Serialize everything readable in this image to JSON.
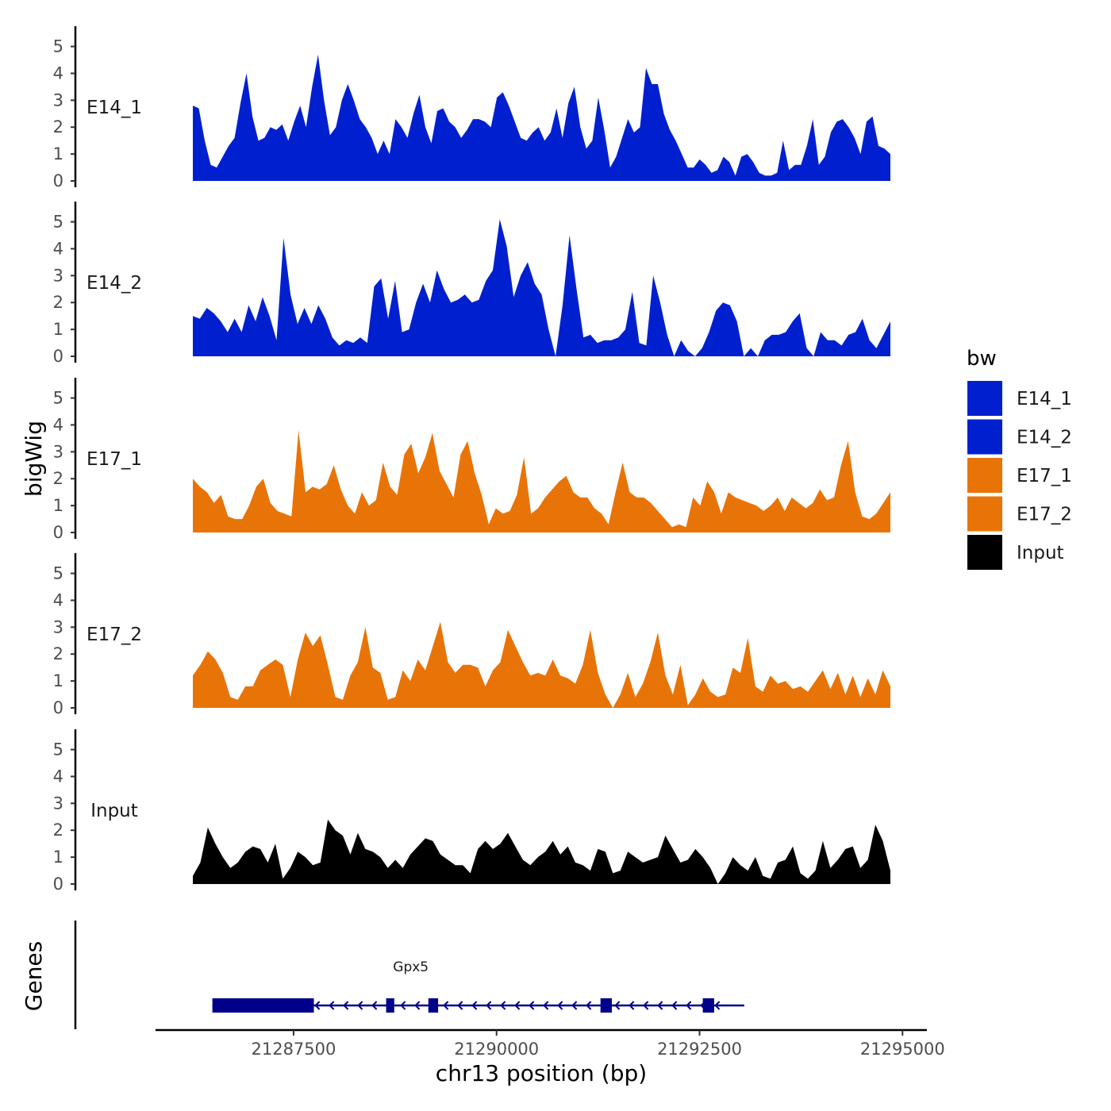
{
  "chart_data": {
    "type": "area",
    "ylabel": "bigWig",
    "xlabel": "chr13 position (bp)",
    "xlim": [
      21285800,
      21295300
    ],
    "ylim": [
      0,
      5.4
    ],
    "y_ticks": [
      0,
      1,
      2,
      3,
      4,
      5
    ],
    "x_ticks": [
      21287500,
      21290000,
      21292500,
      21295000
    ],
    "x_range_data": [
      21286500,
      21294700
    ],
    "legend": {
      "title": "bw",
      "entries": [
        {
          "label": "E14_1",
          "color": "#0020d0"
        },
        {
          "label": "E14_2",
          "color": "#0020d0"
        },
        {
          "label": "E17_1",
          "color": "#e87408"
        },
        {
          "label": "E17_2",
          "color": "#e87408"
        },
        {
          "label": "Input",
          "color": "#000000"
        }
      ]
    },
    "tracks": [
      {
        "name": "E14_1",
        "color": "#0020d0",
        "values": [
          2.8,
          2.7,
          1.5,
          0.6,
          0.5,
          0.9,
          1.3,
          1.6,
          2.9,
          4.0,
          2.4,
          1.5,
          1.6,
          2.0,
          1.9,
          2.1,
          1.5,
          2.2,
          2.8,
          2.0,
          3.5,
          4.7,
          3.0,
          1.7,
          2.0,
          3.0,
          3.6,
          3.0,
          2.3,
          2.0,
          1.6,
          1.0,
          1.5,
          1.0,
          2.3,
          2.0,
          1.6,
          2.5,
          3.2,
          2.0,
          1.4,
          2.6,
          2.7,
          2.2,
          2.0,
          1.6,
          1.9,
          2.3,
          2.3,
          2.2,
          2.0,
          3.1,
          3.3,
          2.8,
          2.2,
          1.6,
          1.5,
          1.8,
          2.0,
          1.5,
          1.8,
          2.7,
          1.6,
          2.9,
          3.5,
          2.0,
          1.2,
          1.5,
          3.1,
          1.9,
          0.5,
          0.9,
          1.6,
          2.3,
          1.8,
          2.0,
          4.2,
          3.6,
          3.6,
          2.5,
          1.9,
          1.5,
          1.0,
          0.5,
          0.5,
          0.8,
          0.6,
          0.3,
          0.4,
          0.9,
          0.7,
          0.2,
          0.9,
          1.0,
          0.7,
          0.3,
          0.2,
          0.2,
          0.3,
          1.5,
          0.4,
          0.6,
          0.6,
          1.3,
          2.3,
          0.6,
          0.9,
          1.8,
          2.2,
          2.3,
          2.0,
          1.6,
          1.0,
          2.2,
          2.4,
          1.3,
          1.2,
          1.0
        ],
        "tick_label": "E14_1"
      },
      {
        "name": "E14_2",
        "color": "#0020d0",
        "values": [
          1.5,
          1.4,
          1.8,
          1.6,
          1.3,
          0.9,
          1.4,
          0.9,
          1.9,
          1.3,
          2.2,
          1.5,
          0.6,
          4.4,
          2.3,
          1.2,
          1.8,
          1.2,
          1.9,
          1.4,
          0.7,
          0.4,
          0.6,
          0.5,
          0.7,
          0.5,
          2.6,
          2.9,
          1.4,
          2.8,
          0.9,
          1.0,
          2.0,
          2.7,
          2.0,
          3.2,
          2.5,
          2.0,
          2.1,
          2.3,
          2.0,
          2.1,
          2.8,
          3.2,
          5.1,
          4.1,
          2.2,
          3.0,
          3.5,
          2.7,
          2.3,
          1.0,
          0.0,
          1.9,
          4.5,
          2.5,
          0.7,
          0.8,
          0.5,
          0.6,
          0.6,
          0.7,
          1.0,
          2.4,
          0.5,
          0.4,
          3.0,
          2.0,
          0.8,
          0.0,
          0.6,
          0.2,
          0.0,
          0.3,
          0.9,
          1.7,
          2.0,
          1.9,
          1.3,
          0.0,
          0.3,
          0.0,
          0.6,
          0.8,
          0.8,
          0.9,
          1.3,
          1.6,
          0.3,
          0.0,
          0.9,
          0.6,
          0.6,
          0.4,
          0.8,
          0.9,
          1.4,
          0.6,
          0.3,
          0.8,
          1.3
        ],
        "tick_label": "E14_2"
      },
      {
        "name": "E17_1",
        "color": "#e87408",
        "values": [
          2.0,
          1.7,
          1.5,
          1.1,
          1.4,
          0.6,
          0.5,
          0.5,
          1.0,
          1.7,
          2.0,
          1.1,
          0.8,
          0.7,
          0.6,
          3.8,
          1.5,
          1.7,
          1.6,
          1.8,
          2.5,
          1.6,
          1.0,
          0.7,
          1.5,
          1.0,
          1.2,
          2.6,
          1.7,
          1.4,
          2.9,
          3.3,
          2.2,
          2.8,
          3.7,
          2.3,
          1.8,
          1.3,
          2.9,
          3.4,
          2.2,
          1.4,
          0.3,
          0.9,
          0.7,
          0.8,
          1.4,
          2.8,
          0.7,
          0.9,
          1.3,
          1.6,
          1.9,
          2.1,
          1.5,
          1.3,
          1.3,
          0.9,
          0.7,
          0.3,
          1.5,
          2.6,
          1.5,
          1.3,
          1.3,
          1.1,
          0.8,
          0.5,
          0.2,
          0.3,
          0.2,
          1.3,
          1.0,
          1.9,
          1.5,
          0.7,
          1.5,
          1.3,
          1.2,
          1.1,
          1.0,
          0.8,
          1.0,
          1.3,
          0.8,
          1.3,
          1.1,
          0.9,
          1.1,
          1.6,
          1.2,
          1.3,
          2.5,
          3.4,
          1.5,
          0.6,
          0.5,
          0.7,
          1.1,
          1.5
        ],
        "tick_label": "E17_1"
      },
      {
        "name": "E17_2",
        "color": "#e87408",
        "values": [
          1.2,
          1.6,
          2.1,
          1.8,
          1.3,
          0.4,
          0.3,
          0.8,
          0.8,
          1.4,
          1.6,
          1.8,
          1.6,
          0.4,
          1.8,
          2.8,
          2.3,
          2.7,
          1.6,
          0.4,
          0.3,
          1.2,
          1.7,
          3.0,
          1.5,
          1.3,
          0.3,
          0.4,
          1.4,
          1.0,
          1.8,
          1.4,
          2.3,
          3.2,
          1.7,
          1.3,
          1.6,
          1.6,
          1.5,
          0.8,
          1.4,
          1.7,
          2.9,
          2.3,
          1.7,
          1.2,
          1.3,
          1.2,
          1.8,
          1.2,
          1.1,
          0.9,
          1.6,
          2.9,
          1.3,
          0.5,
          0.0,
          0.5,
          1.3,
          0.4,
          0.9,
          1.7,
          2.8,
          1.2,
          0.5,
          1.6,
          0.1,
          0.5,
          1.1,
          0.6,
          0.4,
          0.5,
          1.5,
          1.3,
          2.6,
          0.8,
          0.6,
          1.2,
          0.9,
          1.0,
          0.7,
          0.8,
          0.6,
          1.0,
          1.4,
          0.7,
          1.3,
          0.5,
          1.2,
          0.4,
          1.1,
          0.5,
          1.4,
          0.8
        ],
        "tick_label": "E17_2"
      },
      {
        "name": "Input",
        "color": "#000000",
        "values": [
          0.3,
          0.8,
          2.1,
          1.5,
          1.0,
          0.6,
          0.8,
          1.2,
          1.4,
          1.3,
          0.8,
          1.5,
          0.2,
          0.6,
          1.2,
          1.0,
          0.7,
          0.8,
          2.4,
          2.0,
          1.8,
          1.1,
          1.9,
          1.3,
          1.2,
          1.0,
          0.6,
          0.9,
          0.6,
          1.1,
          1.4,
          1.7,
          1.6,
          1.1,
          0.9,
          0.7,
          0.7,
          0.4,
          1.3,
          1.6,
          1.3,
          1.5,
          1.9,
          1.4,
          0.9,
          0.7,
          1.0,
          1.2,
          1.6,
          1.1,
          1.4,
          0.8,
          0.7,
          0.5,
          1.3,
          1.2,
          0.4,
          0.5,
          1.2,
          1.0,
          0.8,
          0.9,
          1.0,
          1.8,
          1.3,
          0.8,
          0.9,
          1.3,
          1.0,
          0.6,
          0.0,
          0.4,
          1.0,
          0.7,
          0.5,
          1.0,
          0.3,
          0.2,
          0.8,
          0.9,
          1.4,
          0.4,
          0.2,
          0.5,
          1.6,
          0.6,
          0.9,
          1.3,
          1.4,
          0.6,
          0.9,
          2.2,
          1.6,
          0.5
        ],
        "tick_label": "Input"
      }
    ],
    "genes": {
      "title": "Genes",
      "name": "Gpx5",
      "strand": "-",
      "color": "#00008b",
      "start": 21286500,
      "end": 21293050,
      "exons": [
        {
          "start": 21286500,
          "end": 21287750
        },
        {
          "start": 21288640,
          "end": 21288740
        },
        {
          "start": 21289160,
          "end": 21289280
        },
        {
          "start": 21291280,
          "end": 21291420
        },
        {
          "start": 21292540,
          "end": 21292680
        }
      ]
    }
  }
}
